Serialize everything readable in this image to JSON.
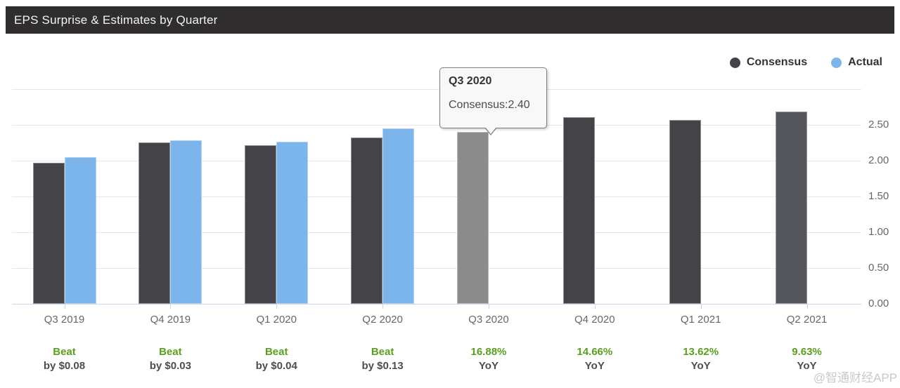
{
  "header": {
    "title": "EPS Surprise & Estimates by Quarter"
  },
  "legend": {
    "items": [
      {
        "label": "Consensus",
        "color": "#434348"
      },
      {
        "label": "Actual",
        "color": "#7cb5ec"
      }
    ]
  },
  "tooltip": {
    "title": "Q3 2020",
    "body": "Consensus:2.40"
  },
  "watermark": "@智通财经APP",
  "colors": {
    "header_bg": "#2f2d2e",
    "header_text": "#f4f4f4",
    "grid": "#e6e6e6",
    "axis": "#ccd6eb",
    "axis_text": "#666666",
    "green": "#5a9e1f",
    "annotation_dark": "#4d4d4d",
    "tooltip_bg": "#f8f8f8",
    "tooltip_border": "#7f7f7f",
    "watermark": "#c8c8c8",
    "hovered_bar": "#8b8b8b",
    "last_bar": "#54565c"
  },
  "chart_data": {
    "type": "bar",
    "title": "EPS Surprise & Estimates by Quarter",
    "categories": [
      "Q3 2019",
      "Q4 2019",
      "Q1 2020",
      "Q2 2020",
      "Q3 2020",
      "Q4 2020",
      "Q1 2021",
      "Q2 2021"
    ],
    "series": [
      {
        "name": "Consensus",
        "color": "#434348",
        "values": [
          1.97,
          2.25,
          2.22,
          2.32,
          2.4,
          2.61,
          2.57,
          2.69
        ]
      },
      {
        "name": "Actual",
        "color": "#7cb5ec",
        "values": [
          2.05,
          2.28,
          2.26,
          2.45,
          null,
          null,
          null,
          null
        ]
      }
    ],
    "xlabel": "",
    "ylabel": "",
    "ylim": [
      0,
      3
    ],
    "ytick_step": 0.5,
    "ytick_labels": [
      "0.00",
      "0.50",
      "1.00",
      "1.50",
      "2.00",
      "2.50"
    ],
    "yaxis_side": "right",
    "grid": true,
    "legend_position": "top-right",
    "hovered": {
      "category": "Q3 2020",
      "series": "Consensus",
      "tooltip_title": "Q3 2020",
      "tooltip_text": "Consensus:2.40"
    },
    "annotations": [
      {
        "line1": "Beat",
        "line2": "by $0.08"
      },
      {
        "line1": "Beat",
        "line2": "by $0.03"
      },
      {
        "line1": "Beat",
        "line2": "by $0.04"
      },
      {
        "line1": "Beat",
        "line2": "by $0.13"
      },
      {
        "line1": "16.88%",
        "line2": "YoY"
      },
      {
        "line1": "14.66%",
        "line2": "YoY"
      },
      {
        "line1": "13.62%",
        "line2": "YoY"
      },
      {
        "line1": "9.63%",
        "line2": "YoY"
      }
    ]
  }
}
